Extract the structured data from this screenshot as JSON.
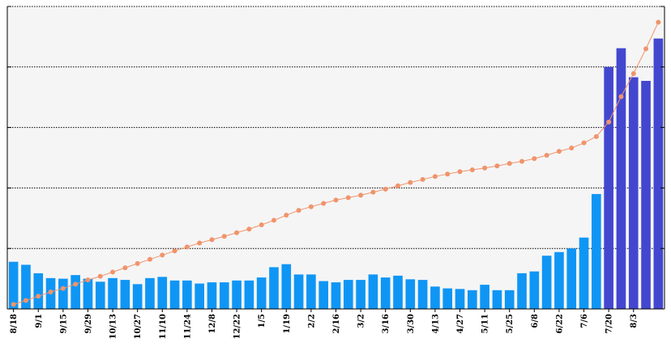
{
  "chart_data": {
    "type": "bar",
    "title": "",
    "xlabel": "",
    "ylabel": "",
    "ylim": [
      0,
      5
    ],
    "y2lim": [
      0,
      1
    ],
    "grid": true,
    "grid_values": [
      1,
      2,
      3,
      4,
      5
    ],
    "colors": {
      "bar": "#0f96f5",
      "bar_recent": "#4347cf",
      "line": "#f0946c",
      "plot_bg": "#f5f5f5"
    },
    "tick_labels": [
      "8/18",
      "9/1",
      "9/15",
      "9/29",
      "10/13",
      "10/27",
      "11/10",
      "11/24",
      "12/8",
      "12/22",
      "1/5",
      "1/19",
      "2/2",
      "2/16",
      "3/2",
      "3/16",
      "3/30",
      "4/13",
      "4/27",
      "5/11",
      "5/25",
      "6/8",
      "6/22",
      "7/6",
      "7/20",
      "8/3"
    ],
    "tick_every": 2,
    "series": [
      {
        "type": "bar",
        "values": [
          0.78,
          0.73,
          0.59,
          0.51,
          0.5,
          0.56,
          0.5,
          0.45,
          0.51,
          0.48,
          0.41,
          0.51,
          0.53,
          0.47,
          0.47,
          0.42,
          0.44,
          0.44,
          0.47,
          0.47,
          0.52,
          0.69,
          0.74,
          0.57,
          0.57,
          0.46,
          0.44,
          0.48,
          0.48,
          0.57,
          0.52,
          0.55,
          0.49,
          0.48,
          0.37,
          0.34,
          0.33,
          0.31,
          0.4,
          0.31,
          0.31,
          0.59,
          0.62,
          0.88,
          0.94,
          1.0,
          1.18,
          1.9,
          4.0,
          4.31,
          3.83,
          3.77,
          4.47
        ],
        "recent_from_index": 48
      },
      {
        "type": "line",
        "values": [
          0.015,
          0.028,
          0.042,
          0.056,
          0.068,
          0.082,
          0.096,
          0.108,
          0.122,
          0.136,
          0.15,
          0.164,
          0.178,
          0.192,
          0.205,
          0.218,
          0.229,
          0.24,
          0.252,
          0.264,
          0.278,
          0.293,
          0.31,
          0.326,
          0.338,
          0.349,
          0.36,
          0.368,
          0.376,
          0.386,
          0.396,
          0.407,
          0.418,
          0.428,
          0.438,
          0.446,
          0.454,
          0.46,
          0.466,
          0.473,
          0.481,
          0.488,
          0.497,
          0.508,
          0.521,
          0.532,
          0.549,
          0.57,
          0.618,
          0.702,
          0.778,
          0.86,
          0.948
        ]
      }
    ]
  }
}
